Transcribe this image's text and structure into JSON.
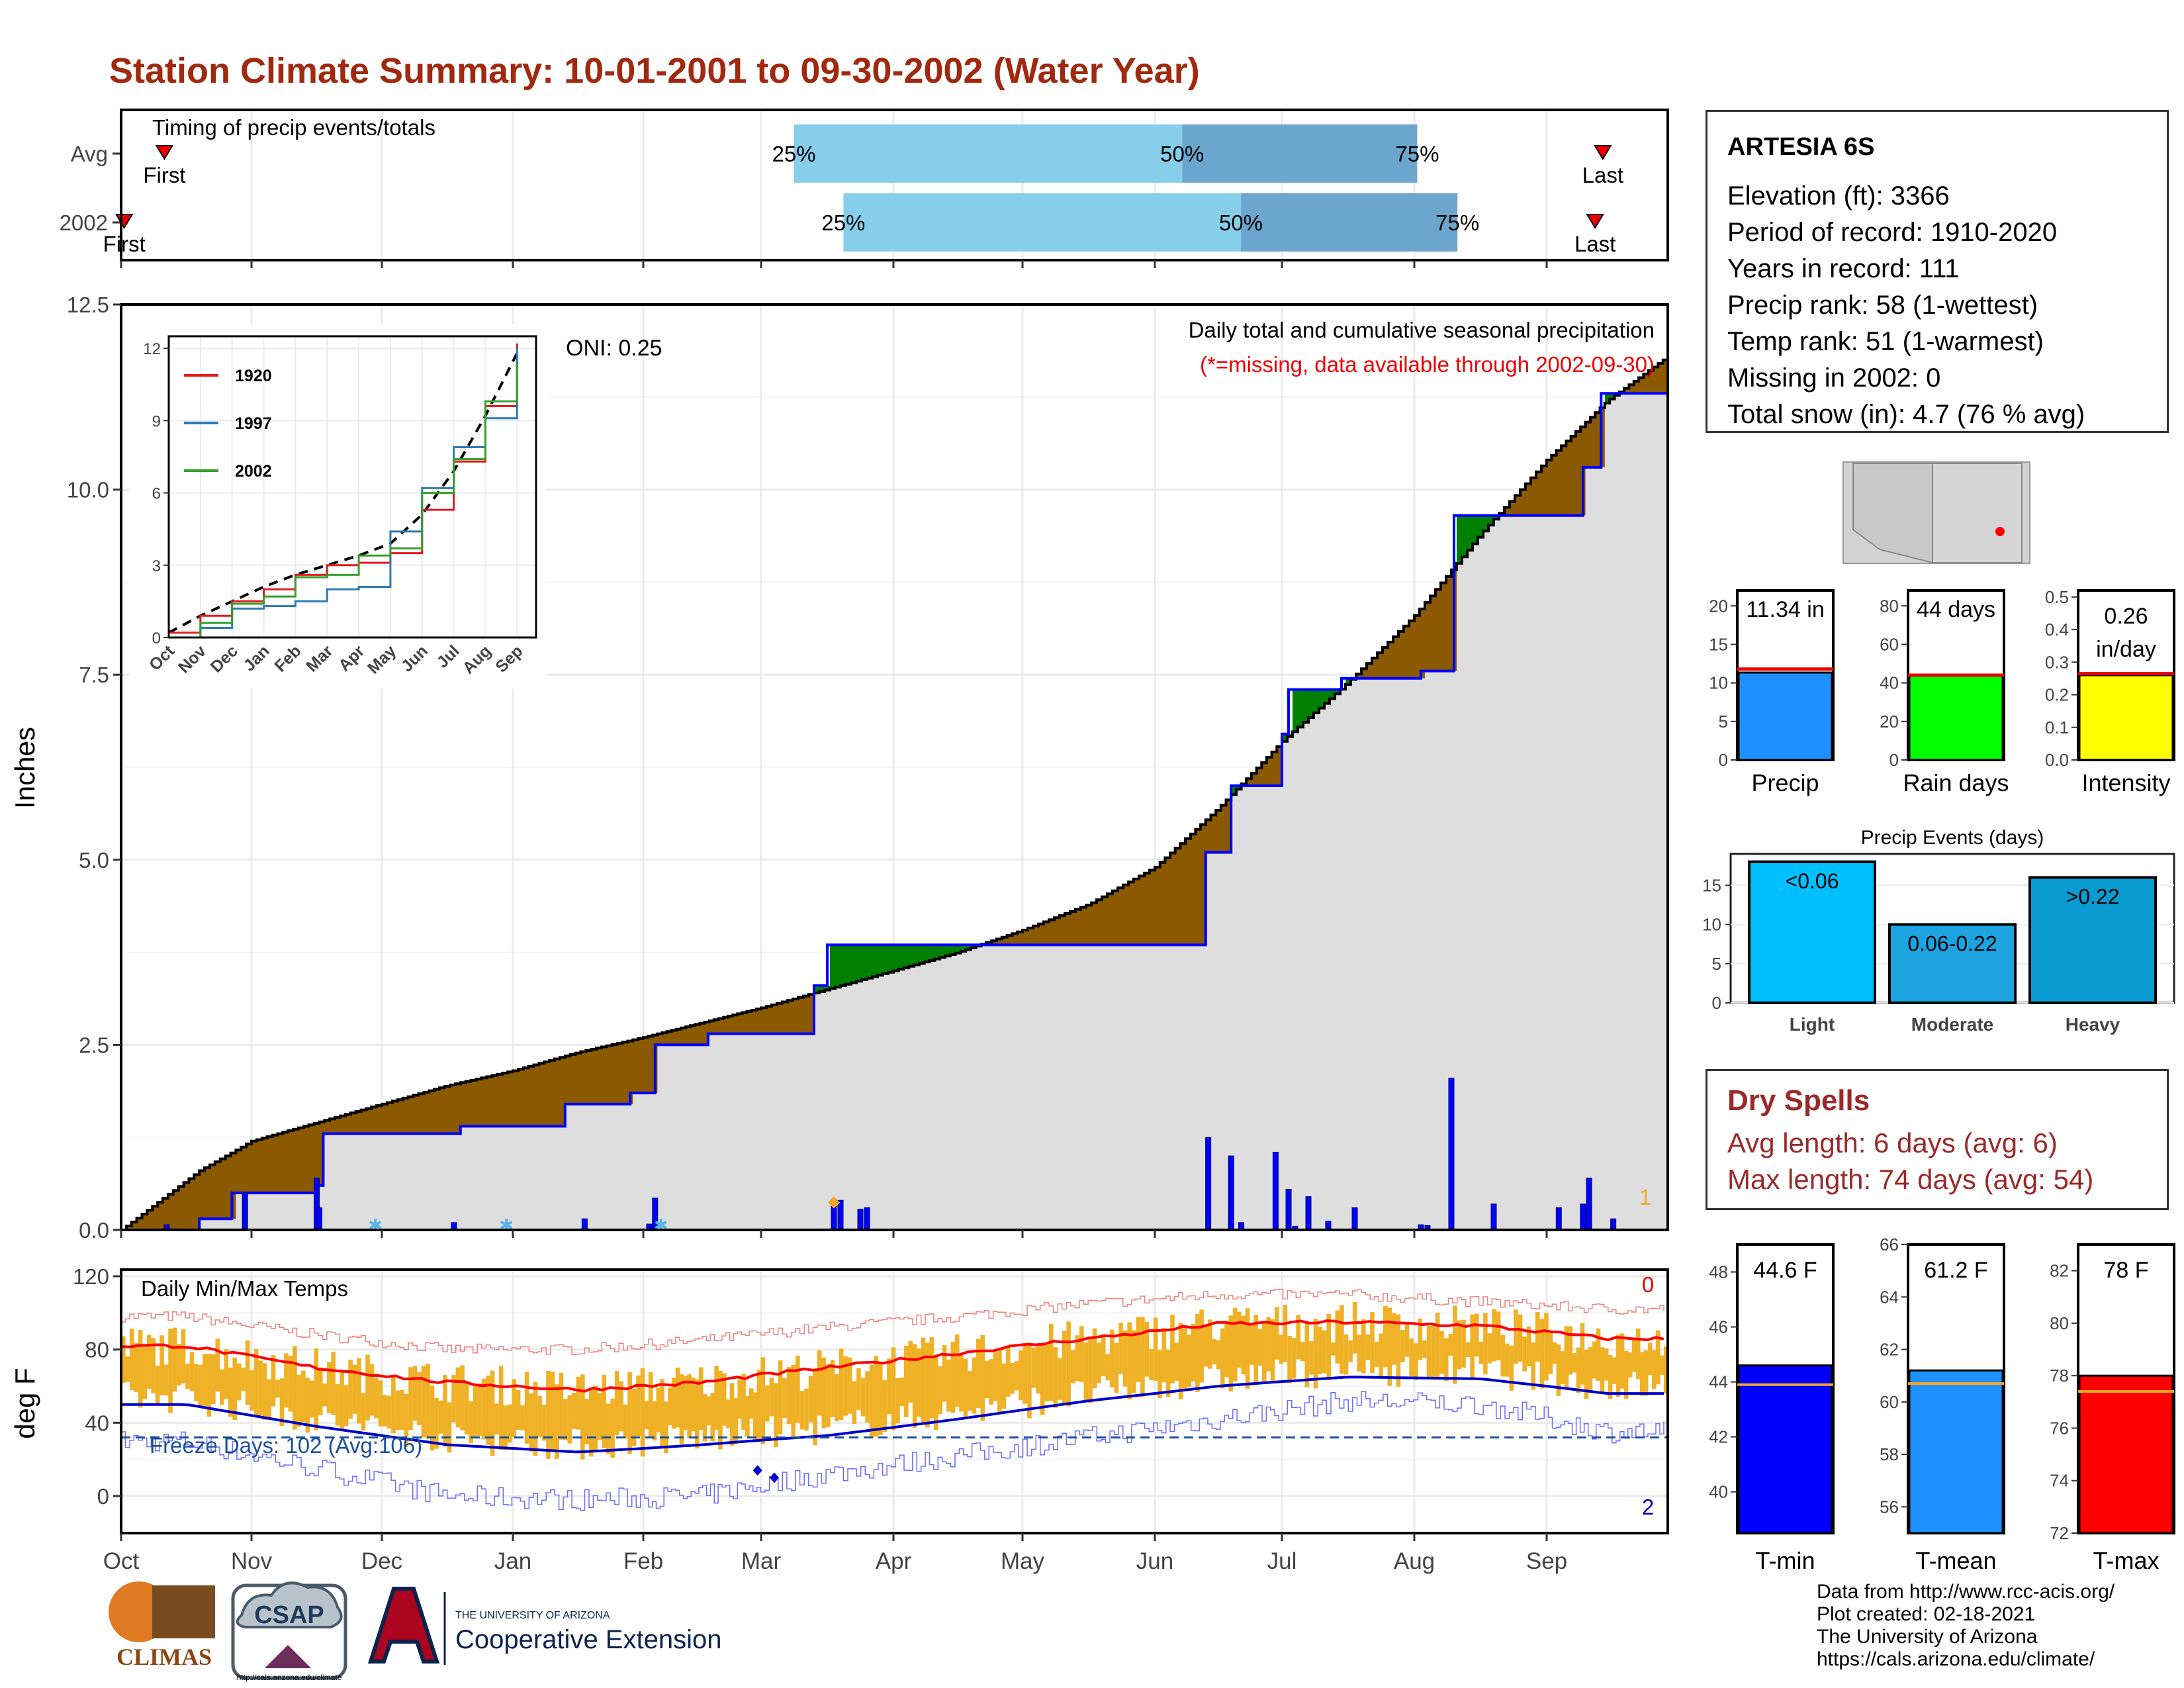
{
  "title": "Station Climate Summary: 10-01-2001 to 09-30-2002 (Water Year)",
  "timing_panel": {
    "label": "Timing of precip events/totals",
    "rows": [
      {
        "row_label": "Avg",
        "first_label": "First",
        "last_label": "Last",
        "first_frac": 0.028,
        "last_frac": 0.958,
        "p25_frac": 0.435,
        "p50_frac": 0.686,
        "p75_frac": 0.838,
        "p25_label": "25%",
        "p50_label": "50%",
        "p75_label": "75%"
      },
      {
        "row_label": "2002",
        "first_label": "First",
        "last_label": "Last",
        "first_frac": 0.002,
        "last_frac": 0.953,
        "p25_frac": 0.467,
        "p50_frac": 0.724,
        "p75_frac": 0.864,
        "p25_label": "25%",
        "p50_label": "50%",
        "p75_label": "75%"
      }
    ]
  },
  "precip_panel": {
    "ylabel": "Inches",
    "y_ticks": [
      "0.0",
      "2.5",
      "5.0",
      "7.5",
      "10.0",
      "12.5"
    ],
    "oni_label": "ONI: 0.25",
    "caption": "Daily total and cumulative seasonal precipitation",
    "missing_note": "(*=missing, data available through 2002-09-30)",
    "corner_count": "1"
  },
  "inset": {
    "y_ticks": [
      "0",
      "3",
      "6",
      "9",
      "12"
    ],
    "x_ticks": [
      "Oct",
      "Nov",
      "Dec",
      "Jan",
      "Feb",
      "Mar",
      "Apr",
      "May",
      "Jun",
      "Jul",
      "Aug",
      "Sep"
    ],
    "legend": [
      {
        "name": "1920",
        "color": "#e31a1c"
      },
      {
        "name": "1997",
        "color": "#2c7bb6"
      },
      {
        "name": "2002",
        "color": "#33a02c"
      }
    ]
  },
  "temp_panel": {
    "ylabel": "deg F",
    "label": "Daily Min/Max Temps",
    "y_ticks": [
      "0",
      "40",
      "80",
      "120"
    ],
    "freeze_label": "Freeze Days: 102 (Avg:106)",
    "top_count": "0",
    "bottom_count": "2"
  },
  "months": [
    "Oct",
    "Nov",
    "Dec",
    "Jan",
    "Feb",
    "Mar",
    "Apr",
    "May",
    "Jun",
    "Jul",
    "Aug",
    "Sep"
  ],
  "station": {
    "name": "ARTESIA 6S",
    "lines": [
      "Elevation (ft): 3366",
      "Period of record: 1910-2020",
      "Years in record: 111",
      "Precip rank: 58 (1-wettest)",
      "Temp rank: 51 (1-warmest)",
      "Missing in 2002: 0",
      "Total snow (in): 4.7 (76 % avg)"
    ]
  },
  "summary_bars": [
    {
      "label": "Precip",
      "value_label": "11.34 in",
      "value": 11.34,
      "avg": 11.8,
      "max": 22,
      "ticks": [
        "0",
        "5",
        "10",
        "15",
        "20"
      ],
      "color": "#1e90ff"
    },
    {
      "label": "Rain days",
      "value_label": "44 days",
      "value": 44,
      "avg": 44,
      "max": 88,
      "ticks": [
        "0",
        "20",
        "40",
        "60",
        "80"
      ],
      "color": "#00ff00"
    },
    {
      "label": "Intensity",
      "value_label": "0.26 in/day",
      "value_label_1": "0.26",
      "value_label_2": "in/day",
      "value": 0.26,
      "avg": 0.265,
      "max": 0.52,
      "ticks": [
        "0.0",
        "0.1",
        "0.2",
        "0.3",
        "0.4",
        "0.5"
      ],
      "color": "#ffff00"
    }
  ],
  "precip_events": {
    "title": "Precip Events (days)",
    "y_ticks": [
      "0",
      "5",
      "10",
      "15"
    ],
    "bars": [
      {
        "category": "Light",
        "label": "<0.06",
        "value": 18,
        "color": "#00bfff"
      },
      {
        "category": "Moderate",
        "label": "0.06-0.22",
        "value": 10,
        "color": "#1ca3e0"
      },
      {
        "category": "Heavy",
        "label": ">0.22",
        "value": 16,
        "color": "#0a9bd0"
      }
    ]
  },
  "dry_spells": {
    "title": "Dry Spells",
    "avg_line": "Avg length: 6 days (avg: 6)",
    "max_line": "Max length: 74 days (avg: 54)"
  },
  "temp_bars": [
    {
      "label": "T-min",
      "value_label": "44.6 F",
      "value": 44.6,
      "avg": 43.9,
      "min": 38.5,
      "max": 49,
      "ticks": [
        "40",
        "42",
        "44",
        "46",
        "48"
      ],
      "color": "#0000ff"
    },
    {
      "label": "T-mean",
      "value_label": "61.2 F",
      "value": 61.2,
      "avg": 60.7,
      "min": 55,
      "max": 66,
      "ticks": [
        "56",
        "58",
        "60",
        "62",
        "64",
        "66"
      ],
      "color": "#1e90ff"
    },
    {
      "label": "T-max",
      "value_label": "78 F",
      "value": 78,
      "avg": 77.4,
      "min": 72,
      "max": 83,
      "ticks": [
        "72",
        "74",
        "76",
        "78",
        "80",
        "82"
      ],
      "color": "#ff0000"
    }
  ],
  "footer": [
    "Data from http://www.rcc-acis.org/",
    "Plot created: 02-18-2021",
    "The University of Arizona",
    "https://cals.arizona.edu/climate/"
  ],
  "logos": {
    "climas": "CLIMAS",
    "csap": "CSAP",
    "csap_url": "http://cals.arizona.edu/climate",
    "ua_line1": "THE UNIVERSITY OF ARIZONA",
    "ua_line2": "Cooperative Extension"
  },
  "chart_data": [
    {
      "type": "area",
      "title": "Daily total and cumulative seasonal precipitation",
      "ylabel": "Inches",
      "ylim": [
        0,
        12.5
      ],
      "x_unit": "month of water year (Oct=0)",
      "series": [
        {
          "name": "2002 cumulative (blue step)",
          "x": [
            0,
            0.6,
            0.85,
            1.5,
            1.55,
            2.6,
            3.4,
            3.9,
            4.1,
            4.55,
            5.4,
            5.5,
            5.85,
            6.85,
            8.4,
            8.6,
            9.0,
            9.05,
            9.45,
            10.05,
            10.3,
            11.3,
            11.45,
            12.0
          ],
          "y": [
            0.0,
            0.15,
            0.5,
            0.6,
            1.3,
            1.4,
            1.7,
            1.85,
            2.5,
            2.65,
            3.3,
            3.85,
            3.85,
            3.85,
            5.1,
            6.0,
            6.7,
            7.3,
            7.45,
            7.55,
            9.65,
            10.3,
            11.3,
            11.34
          ]
        },
        {
          "name": "Average cumulative (black step)",
          "x": [
            0,
            0.6,
            1.0,
            1.5,
            2.0,
            2.5,
            3.0,
            3.5,
            4.0,
            4.5,
            5.0,
            5.5,
            6.0,
            6.5,
            7.0,
            7.5,
            8.0,
            8.5,
            9.0,
            9.5,
            10.0,
            10.5,
            11.0,
            11.5,
            12.0
          ],
          "y": [
            0.0,
            0.8,
            1.2,
            1.45,
            1.7,
            1.95,
            2.15,
            2.4,
            2.6,
            2.8,
            3.0,
            3.25,
            3.5,
            3.75,
            4.05,
            4.4,
            4.9,
            5.7,
            6.6,
            7.4,
            8.3,
            9.4,
            10.4,
            11.2,
            11.8
          ]
        }
      ],
      "daily_bars": [
        {
          "x": 0.45,
          "y": 0.05
        },
        {
          "x": 1.45,
          "y": 0.3
        },
        {
          "x": 1.5,
          "y": 0.5
        },
        {
          "x": 1.95,
          "y": 0.02
        },
        {
          "x": 2.55,
          "y": 0.05
        },
        {
          "x": 2.6,
          "y": 0.7
        },
        {
          "x": 4.0,
          "y": 0.1
        },
        {
          "x": 5.35,
          "y": 0.25
        },
        {
          "x": 5.5,
          "y": 0.4
        },
        {
          "x": 8.3,
          "y": 0.25
        },
        {
          "x": 8.35,
          "y": 0.35
        },
        {
          "x": 8.6,
          "y": 0.3
        },
        {
          "x": 8.65,
          "y": 0.08
        },
        {
          "x": 14.5,
          "y": 0.0
        }
      ],
      "oni": 0.25
    },
    {
      "type": "line",
      "title": "Inset: cumulative precipitation comparison",
      "xlabel": "",
      "ylabel": "",
      "ylim": [
        0,
        12
      ],
      "categories": [
        "Oct",
        "Nov",
        "Dec",
        "Jan",
        "Feb",
        "Mar",
        "Apr",
        "May",
        "Jun",
        "Jul",
        "Aug",
        "Sep"
      ],
      "series": [
        {
          "name": "1920",
          "values": [
            0.2,
            0.9,
            1.5,
            2.0,
            2.6,
            3.0,
            3.1,
            3.5,
            5.3,
            7.3,
            9.6,
            12.2
          ]
        },
        {
          "name": "1997",
          "values": [
            0.0,
            0.4,
            1.2,
            1.3,
            1.5,
            2.0,
            2.1,
            4.4,
            6.2,
            7.9,
            9.1,
            12.0
          ]
        },
        {
          "name": "2002",
          "values": [
            0.0,
            0.6,
            1.4,
            1.7,
            2.5,
            2.6,
            3.4,
            3.7,
            6.0,
            7.4,
            9.8,
            11.34
          ]
        }
      ]
    },
    {
      "type": "bar",
      "title": "Daily Min/Max Temps",
      "ylabel": "deg F",
      "ylim": [
        -20,
        120
      ],
      "categories": [
        "Oct",
        "Nov",
        "Dec",
        "Jan",
        "Feb",
        "Mar",
        "Apr",
        "May",
        "Jun",
        "Jul",
        "Aug",
        "Sep"
      ],
      "series": [
        {
          "name": "Avg max",
          "values": [
            82,
            70,
            62,
            58,
            62,
            70,
            78,
            86,
            94,
            95,
            93,
            86
          ]
        },
        {
          "name": "Avg min",
          "values": [
            50,
            38,
            28,
            24,
            28,
            33,
            42,
            52,
            60,
            65,
            64,
            56
          ]
        },
        {
          "name": "Record max",
          "values": [
            98,
            88,
            80,
            80,
            85,
            92,
            98,
            105,
            110,
            110,
            106,
            102
          ]
        },
        {
          "name": "Record min",
          "values": [
            30,
            15,
            0,
            -2,
            0,
            12,
            22,
            32,
            42,
            52,
            50,
            35
          ]
        }
      ],
      "freeze_threshold": 32
    }
  ]
}
